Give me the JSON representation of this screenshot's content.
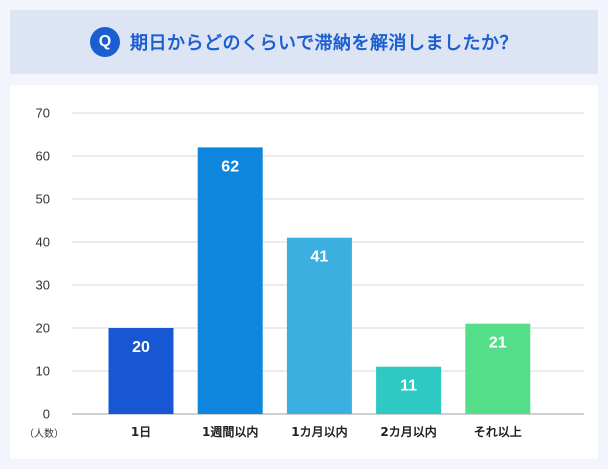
{
  "header": {
    "badge": "Q",
    "question": "期日からどのくらいで滞納を解消しましたか？"
  },
  "chart_data": {
    "type": "bar",
    "categories": [
      "1日",
      "1週間以内",
      "1カ月以内",
      "2カ月以内",
      "それ以上"
    ],
    "values": [
      20,
      62,
      41,
      11,
      21
    ],
    "colors": [
      "#1757d4",
      "#0e86de",
      "#3aafe0",
      "#2dc9c2",
      "#55de8a"
    ],
    "ylim": [
      0,
      70
    ],
    "yticks": [
      0,
      10,
      20,
      30,
      40,
      50,
      60,
      70
    ],
    "ylabel": "（人数）",
    "grid": true
  }
}
